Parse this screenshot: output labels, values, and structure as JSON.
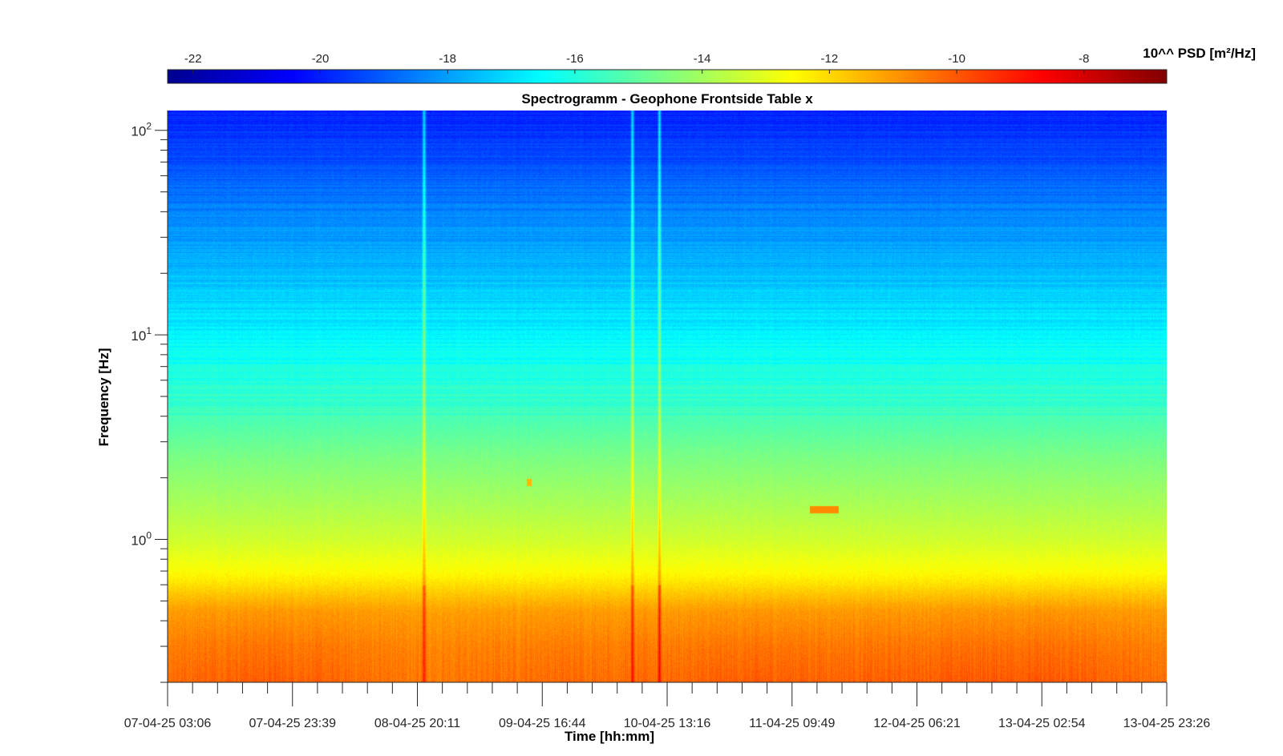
{
  "chart_data": {
    "type": "heatmap",
    "title": "Spectrogramm - Geophone Frontside Table x",
    "xlabel": "Time [hh:mm]",
    "ylabel": "Frequency [Hz]",
    "yscale": "log",
    "ylim": [
      0.2,
      125
    ],
    "x_tick_labels": [
      "07-04-25 03:06",
      "07-04-25 23:39",
      "08-04-25 20:11",
      "09-04-25 16:44",
      "10-04-25 13:16",
      "11-04-25 09:49",
      "12-04-25 06:21",
      "13-04-25 02:54",
      "13-04-25 23:26"
    ],
    "y_ticks": [
      {
        "base": "10",
        "exp": "0",
        "value": 1
      },
      {
        "base": "10",
        "exp": "1",
        "value": 10
      },
      {
        "base": "10",
        "exp": "2",
        "value": 100
      }
    ],
    "colorbar": {
      "label": "10^^ PSD [m²/Hz]",
      "range": [
        -22.4,
        -6.7
      ],
      "ticks": [
        -22,
        -20,
        -18,
        -16,
        -14,
        -12,
        -10,
        -8
      ],
      "colormap": "jet"
    },
    "frequency_profile": [
      {
        "freq": 0.2,
        "log_psd": -10.8
      },
      {
        "freq": 0.3,
        "log_psd": -10.9
      },
      {
        "freq": 0.45,
        "log_psd": -11.2
      },
      {
        "freq": 0.55,
        "log_psd": -11.8
      },
      {
        "freq": 0.7,
        "log_psd": -12.6
      },
      {
        "freq": 1.0,
        "log_psd": -13.3
      },
      {
        "freq": 1.5,
        "log_psd": -13.9
      },
      {
        "freq": 2.5,
        "log_psd": -14.6
      },
      {
        "freq": 4.0,
        "log_psd": -15.4
      },
      {
        "freq": 6.0,
        "log_psd": -16.0
      },
      {
        "freq": 10,
        "log_psd": -16.6
      },
      {
        "freq": 16,
        "log_psd": -17.3
      },
      {
        "freq": 30,
        "log_psd": -18.0
      },
      {
        "freq": 60,
        "log_psd": -19.0
      },
      {
        "freq": 125,
        "log_psd": -20.0
      }
    ],
    "quiet_periods": [
      {
        "from": "07-04-25 03:06",
        "to": "08-04-25 20:11",
        "low_freq_log_psd": -10.6
      },
      {
        "from": "10-04-25 13:16",
        "to": "11-04-25 09:49",
        "low_freq_log_psd": -10.7
      },
      {
        "from": "12-04-25 06:21",
        "to": "13-04-25 23:26",
        "low_freq_log_psd": -10.5
      }
    ],
    "events": [
      {
        "time": "08-04-25 20:11",
        "log_psd_peak": -9.5
      },
      {
        "time": "09-04-25 16:44",
        "log_psd_peak": -9.6
      },
      {
        "time": "10-04-25 13:16",
        "log_psd_peak": -9.2
      }
    ],
    "narrowband_spots": [
      {
        "time": "09-04-25 16:44",
        "freq": 1.9,
        "log_psd": -11.5
      },
      {
        "time": "11-04-25 09:49",
        "freq": 1.4,
        "log_psd": -10.8
      }
    ],
    "grid": false
  }
}
